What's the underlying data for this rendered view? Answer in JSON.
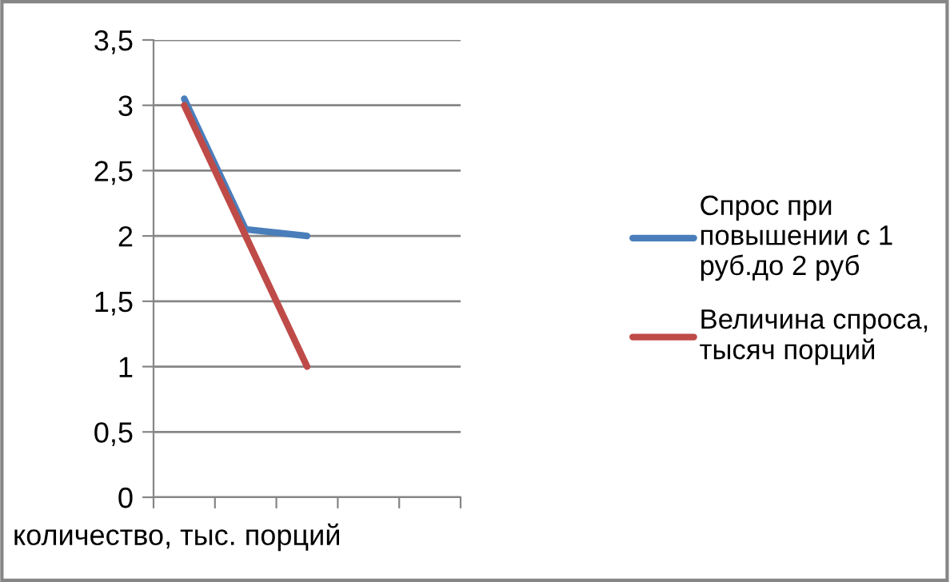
{
  "chart_data": {
    "type": "line",
    "xlabel": "количество, тыс. порций",
    "categories": [
      null,
      null,
      null,
      null,
      null
    ],
    "series": [
      {
        "name": "Спрос при повышении с 1 руб.до 2 руб",
        "color": "#4a7ebb",
        "values": [
          3.05,
          2.05,
          2.0,
          null,
          null
        ]
      },
      {
        "name": "Величина спроса, тысяч порций",
        "color": "#be4b48",
        "values": [
          3.0,
          2.0,
          1.0,
          null,
          null
        ]
      }
    ],
    "ylim": [
      0,
      3.5
    ],
    "yticks": [
      {
        "value": 0,
        "label": "0"
      },
      {
        "value": 0.5,
        "label": "0,5"
      },
      {
        "value": 1,
        "label": "1"
      },
      {
        "value": 1.5,
        "label": "1,5"
      },
      {
        "value": 2,
        "label": "2"
      },
      {
        "value": 2.5,
        "label": "2,5"
      },
      {
        "value": 3,
        "label": "3"
      },
      {
        "value": 3.5,
        "label": "3,5"
      }
    ],
    "grid": "y",
    "legend": "right",
    "marker": "none",
    "line_style": "solid"
  }
}
